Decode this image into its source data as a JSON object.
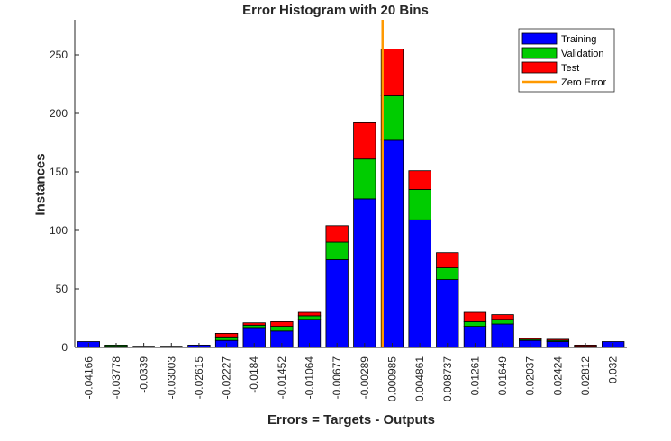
{
  "chart_data": {
    "type": "bar",
    "stacked": true,
    "title": "Error Histogram with 20 Bins",
    "xlabel": "Errors = Targets - Outputs",
    "ylabel": "Instances",
    "ylim": [
      0,
      280
    ],
    "yticks": [
      0,
      50,
      100,
      150,
      200,
      250
    ],
    "categories": [
      "-0.04166",
      "-0.03778",
      "-0.0339",
      "-0.03003",
      "-0.02615",
      "-0.02227",
      "-0.0184",
      "-0.01452",
      "-0.01064",
      "-0.00677",
      "-0.00289",
      "0.000985",
      "0.004861",
      "0.008737",
      "0.01261",
      "0.01649",
      "0.02037",
      "0.02424",
      "0.02812",
      "0.032"
    ],
    "series": [
      {
        "name": "Training",
        "color": "#0000ff",
        "values": [
          5,
          1,
          0,
          0,
          2,
          6,
          17,
          14,
          24,
          75,
          127,
          177,
          109,
          58,
          18,
          20,
          6,
          5,
          1,
          5
        ]
      },
      {
        "name": "Validation",
        "color": "#00cc00",
        "values": [
          0,
          1,
          0,
          0,
          0,
          3,
          2,
          4,
          3,
          15,
          34,
          38,
          26,
          10,
          4,
          4,
          1,
          1,
          0,
          0
        ]
      },
      {
        "name": "Test",
        "color": "#ff0000",
        "values": [
          0,
          0,
          0,
          0,
          0,
          3,
          2,
          4,
          3,
          14,
          31,
          40,
          16,
          13,
          8,
          4,
          1,
          1,
          1,
          0
        ]
      }
    ],
    "zero_error": {
      "name": "Zero Error",
      "color": "#ff9900",
      "x_position_between": [
        "-0.00289",
        "0.000985"
      ]
    },
    "legend": "top-right",
    "grid": false
  }
}
